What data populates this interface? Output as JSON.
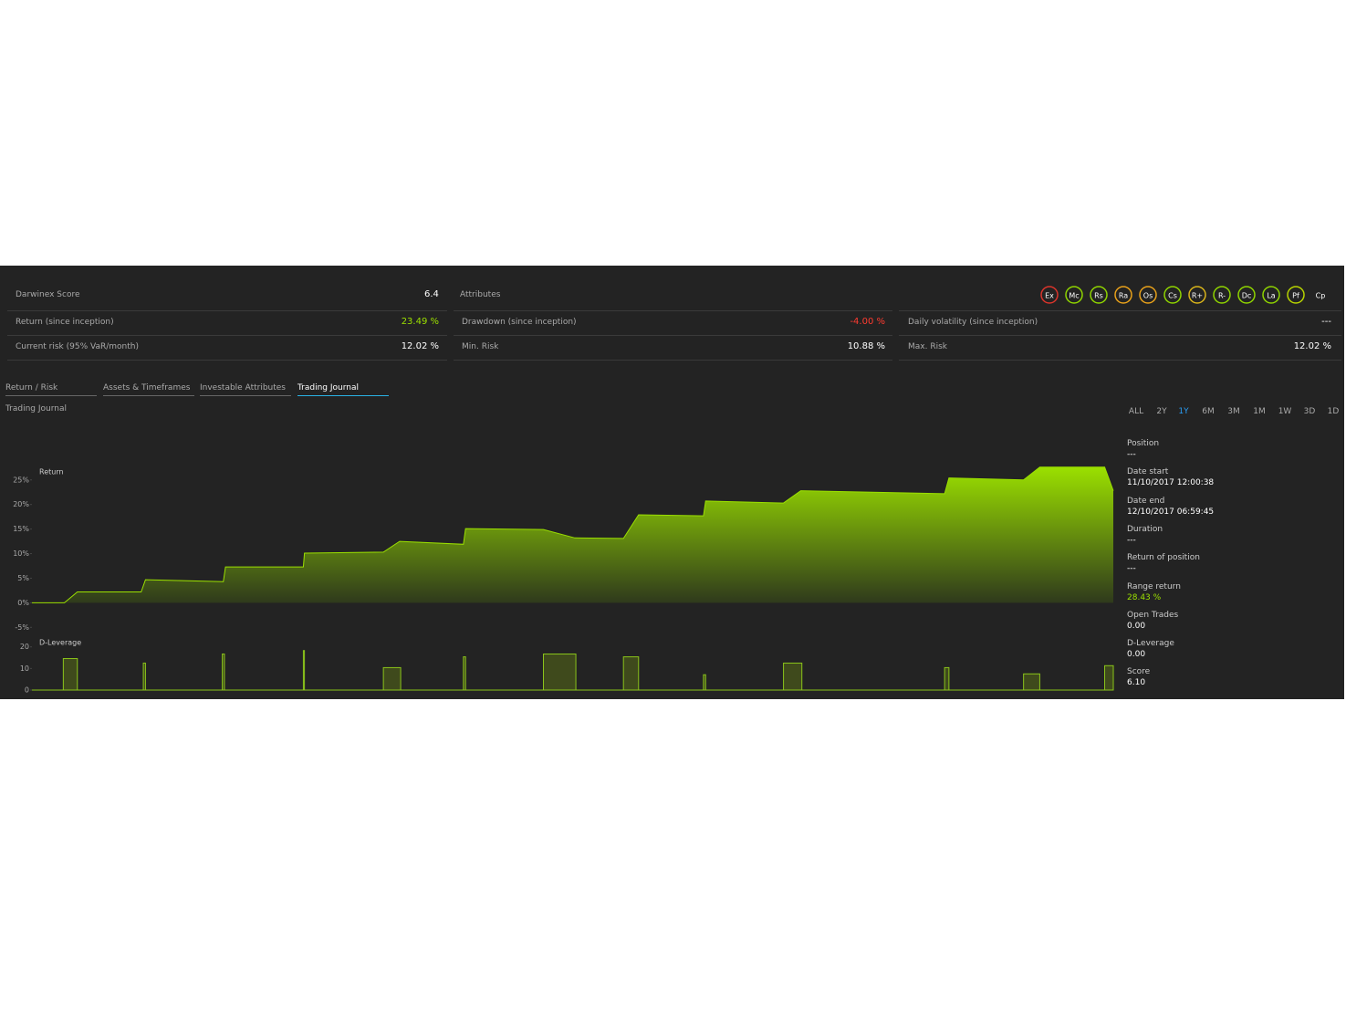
{
  "stats": {
    "score_label": "Darwinex Score",
    "score_value": "6.4",
    "attributes_label": "Attributes",
    "attributes": [
      {
        "label": "Ex",
        "color": "#d9342b"
      },
      {
        "label": "Mc",
        "color": "#8fd400"
      },
      {
        "label": "Rs",
        "color": "#8fd400"
      },
      {
        "label": "Ra",
        "color": "#e8a11a"
      },
      {
        "label": "Os",
        "color": "#e8a11a"
      },
      {
        "label": "Cs",
        "color": "#8fd400"
      },
      {
        "label": "R+",
        "color": "#d9b41a"
      },
      {
        "label": "R-",
        "color": "#8fd400"
      },
      {
        "label": "Dc",
        "color": "#8fd400"
      },
      {
        "label": "La",
        "color": "#8fd400"
      },
      {
        "label": "Pf",
        "color": "#b8d400"
      },
      {
        "label": "Cp"
      }
    ],
    "rows": [
      [
        [
          "Return (since inception)",
          "23.49 %"
        ],
        [
          "Drawdown (since inception)",
          "-4.00 %"
        ],
        [
          "Daily volatility (since inception)",
          "---"
        ]
      ],
      [
        [
          "Current risk (95% VaR/month)",
          "12.02 %"
        ],
        [
          "Min. Risk",
          "10.88 %"
        ],
        [
          "Max. Risk",
          "12.02 %"
        ]
      ]
    ]
  },
  "tabs": {
    "items": [
      "Return / Risk",
      "Assets & Timeframes",
      "Investable Attributes",
      "Trading Journal"
    ],
    "active": 3
  },
  "section_title": "Trading Journal",
  "ranges": {
    "items": [
      "ALL",
      "2Y",
      "1Y",
      "6M",
      "3M",
      "1M",
      "1W",
      "3D",
      "1D"
    ],
    "active": 2
  },
  "info": [
    {
      "label": "Position",
      "value": "---"
    },
    {
      "label": "Date start",
      "value": "11/10/2017 12:00:38"
    },
    {
      "label": "Date end",
      "value": "12/10/2017 06:59:45"
    },
    {
      "label": "Duration",
      "value": "---"
    },
    {
      "label": "Return of position",
      "value": "---"
    },
    {
      "label": "Range return",
      "value": "28.43 %"
    },
    {
      "label": "Open Trades",
      "value": "0.00"
    },
    {
      "label": "D-Leverage",
      "value": "0.00"
    },
    {
      "label": "Score",
      "value": "6.10"
    }
  ],
  "chart_data": [
    {
      "type": "area",
      "title": "Return",
      "color": "#9be000",
      "x": [
        0,
        30,
        42,
        101,
        105,
        177,
        179,
        251,
        252,
        325,
        340,
        399,
        401,
        473,
        502,
        547,
        561,
        621,
        623,
        695,
        711,
        844,
        848,
        917,
        932,
        992,
        1000
      ],
      "values": [
        0,
        0,
        2.2,
        2.2,
        4.7,
        4.3,
        7.3,
        7.3,
        10.1,
        10.3,
        12.5,
        11.9,
        15.1,
        14.9,
        13.2,
        13.1,
        17.9,
        17.7,
        20.7,
        20.3,
        22.8,
        22.2,
        25.4,
        25.0,
        27.6,
        27.6,
        22.8
      ],
      "xlim": [
        0,
        1000
      ],
      "ylim": [
        -5.5,
        33.5
      ],
      "yticks": [
        {
          "value": -5,
          "label": "-5%"
        },
        {
          "value": 0,
          "label": "0%"
        },
        {
          "value": 5,
          "label": "5%"
        },
        {
          "value": 10,
          "label": "10%"
        },
        {
          "value": 15,
          "label": "15%"
        },
        {
          "value": 20,
          "label": "20%"
        },
        {
          "value": 25,
          "label": "25%"
        }
      ]
    },
    {
      "type": "bar",
      "title": "D-Leverage",
      "color": "#8ac41a",
      "x_start": [
        29,
        103,
        176,
        251,
        325,
        399,
        473,
        547,
        621,
        695,
        844,
        917,
        992
      ],
      "x_end": [
        42,
        105,
        178,
        252,
        341,
        401,
        503,
        561,
        623,
        712,
        848,
        932,
        1000
      ],
      "values": [
        14.6,
        12.5,
        16.7,
        18.3,
        10.4,
        15.4,
        16.7,
        15.4,
        7.1,
        12.5,
        10.4,
        7.5,
        11.3
      ],
      "xlim": [
        0,
        1000
      ],
      "ylim": [
        0,
        22
      ],
      "yticks": [
        0,
        10,
        20
      ]
    }
  ]
}
